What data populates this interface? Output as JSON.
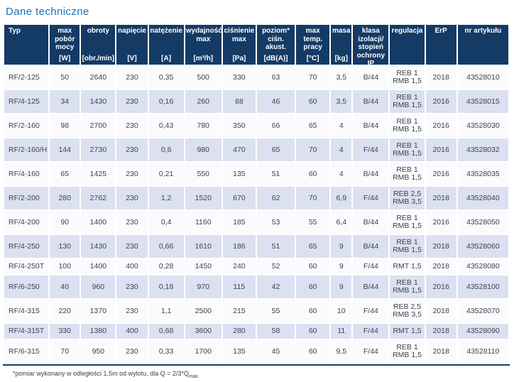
{
  "title": "Dane techniczne",
  "colors": {
    "header_bg": "#143a66",
    "title": "#1474b9",
    "row_alt": "#dbe1f1",
    "row_base": "#fbfbfd",
    "cell_text": "#40424b"
  },
  "table": {
    "columns": [
      {
        "label": "Typ",
        "unit": ""
      },
      {
        "label": "max\npobór\nmocy",
        "unit": "[W]"
      },
      {
        "label": "obroty",
        "unit": "[obr./min]"
      },
      {
        "label": "napięcie",
        "unit": "[V]"
      },
      {
        "label": "natężenie",
        "unit": "[A]"
      },
      {
        "label": "wydajność\nmax",
        "unit": "[m³/h]"
      },
      {
        "label": "ciśnienie\nmax",
        "unit": "[Pa]"
      },
      {
        "label": "poziom*\nciśn.\nakust.",
        "unit": "[dB(A)]"
      },
      {
        "label": "max\ntemp.\npracy",
        "unit": "[°C]"
      },
      {
        "label": "masa",
        "unit": "[kg]"
      },
      {
        "label": "klasa\nizolacji/\nstopień\nochrony IP",
        "unit": ""
      },
      {
        "label": "regulacja",
        "unit": ""
      },
      {
        "label": "ErP",
        "unit": ""
      },
      {
        "label": "nr artykułu",
        "unit": ""
      }
    ],
    "rows": [
      [
        "RF/2-125",
        "50",
        "2640",
        "230",
        "0,35",
        "500",
        "330",
        "63",
        "70",
        "3,5",
        "B/44",
        "REB 1\nRMB 1,5",
        "2018",
        "43528010"
      ],
      [
        "RF/4-125",
        "34",
        "1430",
        "230",
        "0,16",
        "260",
        "88",
        "46",
        "60",
        "3,5",
        "B/44",
        "REB 1\nRMB 1,5",
        "2016",
        "43528015"
      ],
      [
        "RF/2-160",
        "98",
        "2700",
        "230",
        "0,43",
        "780",
        "350",
        "66",
        "65",
        "4",
        "B/44",
        "REB 1\nRMB 1,5",
        "2016",
        "43528030"
      ],
      [
        "RF/2-160/H",
        "144",
        "2730",
        "230",
        "0,6",
        "980",
        "470",
        "65",
        "70",
        "4",
        "F/44",
        "REB 1\nRMB 1,5",
        "2016",
        "43528032"
      ],
      [
        "RF/4-160",
        "65",
        "1425",
        "230",
        "0,21",
        "550",
        "135",
        "51",
        "60",
        "4",
        "B/44",
        "REB 1\nRMB 1,5",
        "2016",
        "43528035"
      ],
      [
        "RF/2-200",
        "280",
        "2762",
        "230",
        "1,2",
        "1520",
        "670",
        "62",
        "70",
        "6,9",
        "F/44",
        "REB 2,5\nRMB 3,5",
        "2018",
        "43528040"
      ],
      [
        "RF/4-200",
        "90",
        "1400",
        "230",
        "0,4",
        "1160",
        "185",
        "53",
        "55",
        "6,4",
        "B/44",
        "REB 1\nRMB 1,5",
        "2016",
        "43528050"
      ],
      [
        "RF/4-250",
        "130",
        "1430",
        "230",
        "0,66",
        "1610",
        "186",
        "51",
        "65",
        "9",
        "B/44",
        "REB 1\nRMB 1,5",
        "2018",
        "43528060"
      ],
      [
        "RF/4-250T",
        "100",
        "1400",
        "400",
        "0,28",
        "1450",
        "240",
        "52",
        "60",
        "9",
        "F/44",
        "RMT 1,5",
        "2018",
        "43528080"
      ],
      [
        "RF/6-250",
        "40",
        "960",
        "230",
        "0,18",
        "970",
        "115",
        "42",
        "60",
        "9",
        "B/44",
        "REB 1\nRMB 1,5",
        "2016",
        "43528100"
      ],
      [
        "RF/4-315",
        "220",
        "1370",
        "230",
        "1,1",
        "2500",
        "215",
        "55",
        "60",
        "10",
        "F/44",
        "REB 2,5\nRMB 3,5",
        "2018",
        "43528070"
      ],
      [
        "RF/4-315T",
        "330",
        "1380",
        "400",
        "0,68",
        "3600",
        "280",
        "58",
        "60",
        "11",
        "F/44",
        "RMT 1,5",
        "2018",
        "43528090"
      ],
      [
        "RF/6-315",
        "70",
        "950",
        "230",
        "0,33",
        "1700",
        "135",
        "45",
        "60",
        "9,5",
        "F/44",
        "REB 1\nRMB 1,5",
        "2018",
        "43528110"
      ]
    ]
  },
  "footnote": {
    "text": "*pomiar wykonany w odległości 1,5m od wylotu, dla Q = 2/3*Q",
    "sub": "max"
  }
}
